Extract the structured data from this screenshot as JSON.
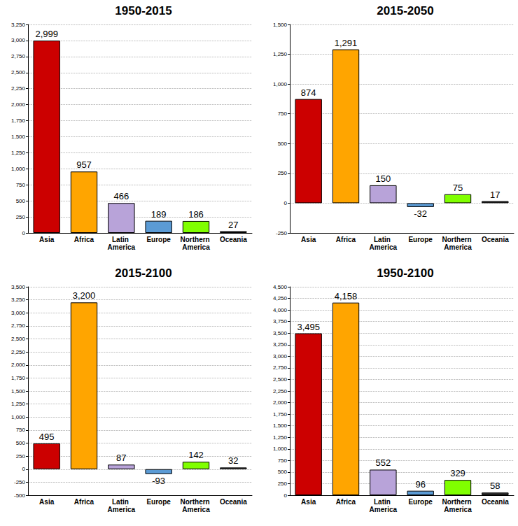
{
  "chart_data": [
    {
      "type": "bar",
      "title": "1950-2015",
      "categories": [
        "Asia",
        "Africa",
        "Latin America",
        "Europe",
        "Northern America",
        "Oceania"
      ],
      "values": [
        2999,
        957,
        466,
        189,
        186,
        27
      ],
      "value_labels": [
        "2,999",
        "957",
        "466",
        "189",
        "186",
        "27"
      ],
      "colors": [
        "#cc0000",
        "#ffa500",
        "#b8a3d9",
        "#5b9bd5",
        "#80ff00",
        "#333333"
      ],
      "ylim": [
        0,
        3250
      ],
      "yticks": [
        0,
        250,
        500,
        750,
        {
          "value": 1000,
          "label": "1,000"
        },
        {
          "value": 1250,
          "label": "1,250"
        },
        {
          "value": 1500,
          "label": "1,500"
        },
        {
          "value": 1750,
          "label": "1,750"
        },
        {
          "value": 2000,
          "label": "2,000"
        },
        {
          "value": 2250,
          "label": "2,250"
        },
        {
          "value": 2500,
          "label": "2,500"
        },
        {
          "value": 2750,
          "label": "2,750"
        },
        {
          "value": 3000,
          "label": "3,000"
        },
        {
          "value": 3250,
          "label": "3,250"
        }
      ],
      "grid": true,
      "data_labels": true
    },
    {
      "type": "bar",
      "title": "2015-2050",
      "categories": [
        "Asia",
        "Africa",
        "Latin America",
        "Europe",
        "Northern America",
        "Oceania"
      ],
      "values": [
        874,
        1291,
        150,
        -32,
        75,
        17
      ],
      "value_labels": [
        "874",
        "1,291",
        "150",
        "-32",
        "75",
        "17"
      ],
      "colors": [
        "#cc0000",
        "#ffa500",
        "#b8a3d9",
        "#5b9bd5",
        "#80ff00",
        "#333333"
      ],
      "ylim": [
        -250,
        1500
      ],
      "yticks": [
        -250,
        0,
        250,
        500,
        750,
        {
          "value": 1000,
          "label": "1,000"
        },
        {
          "value": 1250,
          "label": "1,250"
        },
        {
          "value": 1500,
          "label": "1,500"
        }
      ],
      "grid": true,
      "data_labels": true
    },
    {
      "type": "bar",
      "title": "2015-2100",
      "categories": [
        "Asia",
        "Africa",
        "Latin America",
        "Europe",
        "Northern America",
        "Oceania"
      ],
      "values": [
        495,
        3200,
        87,
        -93,
        142,
        32
      ],
      "value_labels": [
        "495",
        "3,200",
        "87",
        "-93",
        "142",
        "32"
      ],
      "colors": [
        "#cc0000",
        "#ffa500",
        "#b8a3d9",
        "#5b9bd5",
        "#80ff00",
        "#333333"
      ],
      "ylim": [
        -500,
        3500
      ],
      "yticks": [
        -500,
        -250,
        0,
        250,
        500,
        750,
        {
          "value": 1000,
          "label": "1,000"
        },
        {
          "value": 1250,
          "label": "1,250"
        },
        {
          "value": 1500,
          "label": "1,500"
        },
        {
          "value": 1750,
          "label": "1,750"
        },
        {
          "value": 2000,
          "label": "2,000"
        },
        {
          "value": 2250,
          "label": "2,250"
        },
        {
          "value": 2500,
          "label": "2,500"
        },
        {
          "value": 2750,
          "label": "2,750"
        },
        {
          "value": 3000,
          "label": "3,000"
        },
        {
          "value": 3250,
          "label": "3,250"
        },
        {
          "value": 3500,
          "label": "3,500"
        }
      ],
      "grid": true,
      "data_labels": true
    },
    {
      "type": "bar",
      "title": "1950-2100",
      "categories": [
        "Asia",
        "Africa",
        "Latin America",
        "Europe",
        "Northern America",
        "Oceania"
      ],
      "values": [
        3495,
        4158,
        552,
        96,
        329,
        58
      ],
      "value_labels": [
        "3,495",
        "4,158",
        "552",
        "96",
        "329",
        "58"
      ],
      "colors": [
        "#cc0000",
        "#ffa500",
        "#b8a3d9",
        "#5b9bd5",
        "#80ff00",
        "#333333"
      ],
      "ylim": [
        0,
        4500
      ],
      "yticks": [
        0,
        250,
        500,
        750,
        {
          "value": 1000,
          "label": "1,000"
        },
        {
          "value": 1250,
          "label": "1,250"
        },
        {
          "value": 1500,
          "label": "1,500"
        },
        {
          "value": 1750,
          "label": "1,750"
        },
        {
          "value": 2000,
          "label": "2,000"
        },
        {
          "value": 2250,
          "label": "2,250"
        },
        {
          "value": 2500,
          "label": "2,500"
        },
        {
          "value": 2750,
          "label": "2,750"
        },
        {
          "value": 3000,
          "label": "3,000"
        },
        {
          "value": 3250,
          "label": "3,250"
        },
        {
          "value": 3500,
          "label": "3,500"
        },
        {
          "value": 3750,
          "label": "3,750"
        },
        {
          "value": 4000,
          "label": "4,000"
        },
        {
          "value": 4250,
          "label": "4,250"
        },
        {
          "value": 4500,
          "label": "4,500"
        }
      ],
      "grid": true,
      "data_labels": true
    }
  ]
}
